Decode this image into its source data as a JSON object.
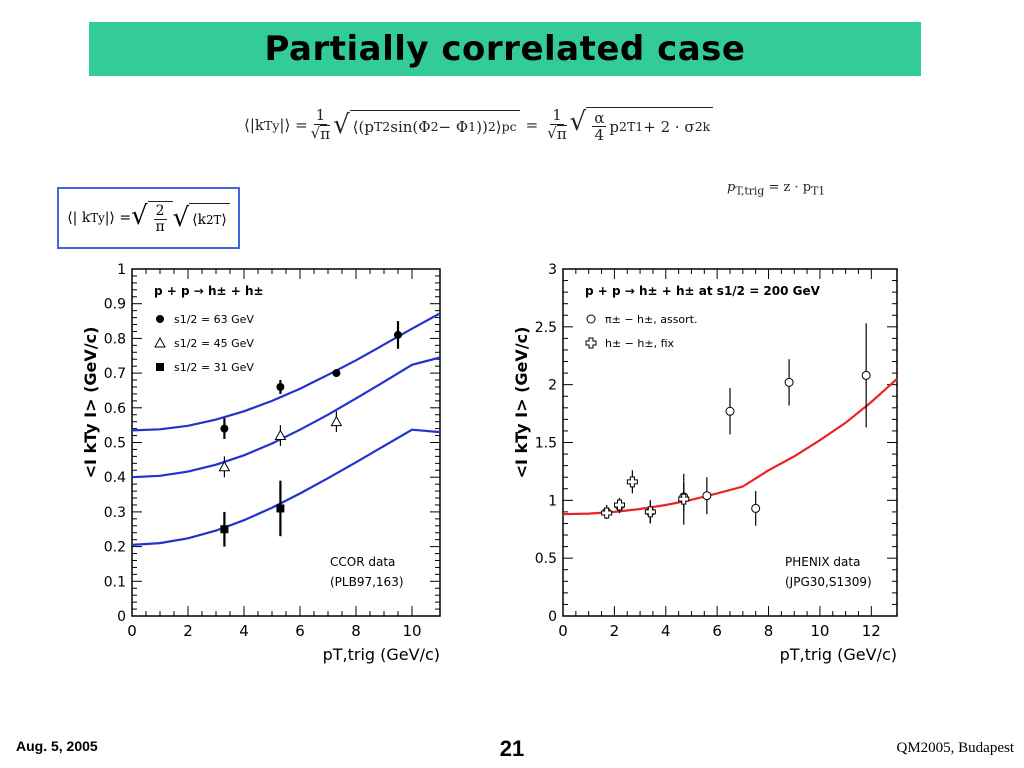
{
  "title": "Partially correlated case",
  "equations": {
    "main_lhs": "⟨|k",
    "main_lhs_sub": "Ty",
    "main_lhs_end": "|⟩ =",
    "main_inner": "⟨(p",
    "main_inner_sub": "T2",
    "main_inner_mid": " sin(Φ",
    "main_inner_2": "2",
    "main_inner_minus": " − Φ",
    "main_inner_1": "1",
    "main_inner_close": "))",
    "main_inner_sup": "2",
    "main_inner_end": "⟩",
    "main_inner_pc": "pc",
    "main_eq2": "=",
    "main_alpha": "α",
    "main_four": "4",
    "main_p": "p",
    "main_p_sup": "2",
    "main_p_sub": "T1",
    "main_plus": " + 2 · σ",
    "main_sigma_sup": "2",
    "main_sigma_sub": "k",
    "one": "1",
    "pi": "π",
    "ptrig_lhs": "p",
    "ptrig_sub": "T,trig",
    "ptrig_rhs": " = z · p",
    "ptrig_rhs_sub": "T1",
    "box_lhs": "⟨| k",
    "box_lhs_sub": "Ty",
    "box_lhs_end": " |⟩ =",
    "box_two": "2",
    "box_pi": "π",
    "box_k": "⟨k",
    "box_k_sup": "2",
    "box_k_sub": "T",
    "box_k_end": "⟩"
  },
  "footer": {
    "date": "Aug. 5, 2005",
    "page": "21",
    "conference": "QM2005, Budapest"
  },
  "chart_data": [
    {
      "type": "scatter",
      "title": "p + p → h± + h±",
      "xlabel": "pT,trig (GeV/c)",
      "ylabel": "<I kTy I> (GeV/c)",
      "xlim": [
        0,
        11
      ],
      "ylim": [
        0,
        1
      ],
      "xticks": [
        0,
        2,
        4,
        6,
        8,
        10
      ],
      "yticks": [
        0,
        0.1,
        0.2,
        0.3,
        0.4,
        0.5,
        0.6,
        0.7,
        0.8,
        0.9,
        1
      ],
      "grid": false,
      "legend_position": "top-left",
      "annotation": [
        "CCOR data",
        "(PLB97,163)"
      ],
      "series": [
        {
          "name": "s1/2 = 63 GeV",
          "marker": "filled-circle",
          "points": [
            {
              "x": 3.3,
              "y": 0.54,
              "err": 0.03
            },
            {
              "x": 5.3,
              "y": 0.66,
              "err": 0.02
            },
            {
              "x": 7.3,
              "y": 0.7,
              "err": 0.01
            },
            {
              "x": 9.5,
              "y": 0.81,
              "err": 0.04
            }
          ]
        },
        {
          "name": "s1/2 = 45 GeV",
          "marker": "open-triangle",
          "points": [
            {
              "x": 3.3,
              "y": 0.43,
              "err": 0.03
            },
            {
              "x": 5.3,
              "y": 0.52,
              "err": 0.03
            },
            {
              "x": 7.3,
              "y": 0.56,
              "err": 0.03
            }
          ]
        },
        {
          "name": "s1/2 = 31 GeV",
          "marker": "filled-square",
          "points": [
            {
              "x": 3.3,
              "y": 0.25,
              "err": 0.05
            },
            {
              "x": 5.3,
              "y": 0.31,
              "err": 0.08
            }
          ]
        }
      ],
      "fit_curves": [
        {
          "color": "#2233cc",
          "x": [
            0,
            1,
            2,
            3,
            4,
            5,
            6,
            7,
            8,
            9,
            10,
            11
          ],
          "y": [
            0.535,
            0.538,
            0.548,
            0.566,
            0.59,
            0.62,
            0.655,
            0.695,
            0.737,
            0.782,
            0.828,
            0.872
          ]
        },
        {
          "color": "#2233cc",
          "x": [
            0,
            1,
            2,
            3,
            4,
            5,
            6,
            7,
            8,
            9,
            10,
            11
          ],
          "y": [
            0.4,
            0.404,
            0.416,
            0.436,
            0.463,
            0.497,
            0.537,
            0.58,
            0.627,
            0.675,
            0.724,
            0.745
          ]
        },
        {
          "color": "#2233cc",
          "x": [
            0,
            1,
            2,
            3,
            4,
            5,
            6,
            7,
            8,
            9,
            10,
            11
          ],
          "y": [
            0.205,
            0.21,
            0.224,
            0.246,
            0.276,
            0.312,
            0.353,
            0.397,
            0.443,
            0.49,
            0.537,
            0.53
          ]
        }
      ]
    },
    {
      "type": "scatter",
      "title": "p + p → h± + h± at s1/2 = 200 GeV",
      "xlabel": "pT,trig (GeV/c)",
      "ylabel": "<I kTy I> (GeV/c)",
      "xlim": [
        0,
        13
      ],
      "ylim": [
        0,
        3
      ],
      "xticks": [
        0,
        2,
        4,
        6,
        8,
        10,
        12
      ],
      "yticks": [
        0,
        0.5,
        1,
        1.5,
        2,
        2.5,
        3
      ],
      "grid": false,
      "legend_position": "top-left",
      "annotation": [
        "PHENIX data",
        "(JPG30,S1309)"
      ],
      "series": [
        {
          "name": "π± − h±, assort.",
          "marker": "open-circle",
          "points": [
            {
              "x": 1.7,
              "y": 0.9,
              "err": 0.06
            },
            {
              "x": 2.2,
              "y": 0.95,
              "err": 0.06
            },
            {
              "x": 3.4,
              "y": 0.9,
              "err": 0.1
            },
            {
              "x": 4.7,
              "y": 1.03,
              "err": 0.12
            },
            {
              "x": 5.6,
              "y": 1.04,
              "err": 0.16
            },
            {
              "x": 6.5,
              "y": 1.77,
              "err": 0.2
            },
            {
              "x": 7.5,
              "y": 0.93,
              "err": 0.15
            },
            {
              "x": 8.8,
              "y": 2.02,
              "err": 0.2
            },
            {
              "x": 11.8,
              "y": 2.08,
              "err": 0.45
            }
          ]
        },
        {
          "name": "h± − h±, fix",
          "marker": "open-cross",
          "points": [
            {
              "x": 1.7,
              "y": 0.89,
              "err": 0.05
            },
            {
              "x": 2.2,
              "y": 0.96,
              "err": 0.06
            },
            {
              "x": 2.7,
              "y": 1.16,
              "err": 0.1
            },
            {
              "x": 3.4,
              "y": 0.9,
              "err": 0.1
            },
            {
              "x": 4.7,
              "y": 1.01,
              "err": 0.22
            }
          ]
        }
      ],
      "fit_curves": [
        {
          "color": "#ee2222",
          "x": [
            0,
            1,
            2,
            3,
            4,
            5,
            6,
            7,
            8,
            9,
            10,
            11,
            12,
            13
          ],
          "y": [
            0.88,
            0.885,
            0.9,
            0.925,
            0.96,
            1.005,
            1.06,
            1.12,
            1.26,
            1.38,
            1.52,
            1.67,
            1.85,
            2.05
          ]
        }
      ]
    }
  ]
}
